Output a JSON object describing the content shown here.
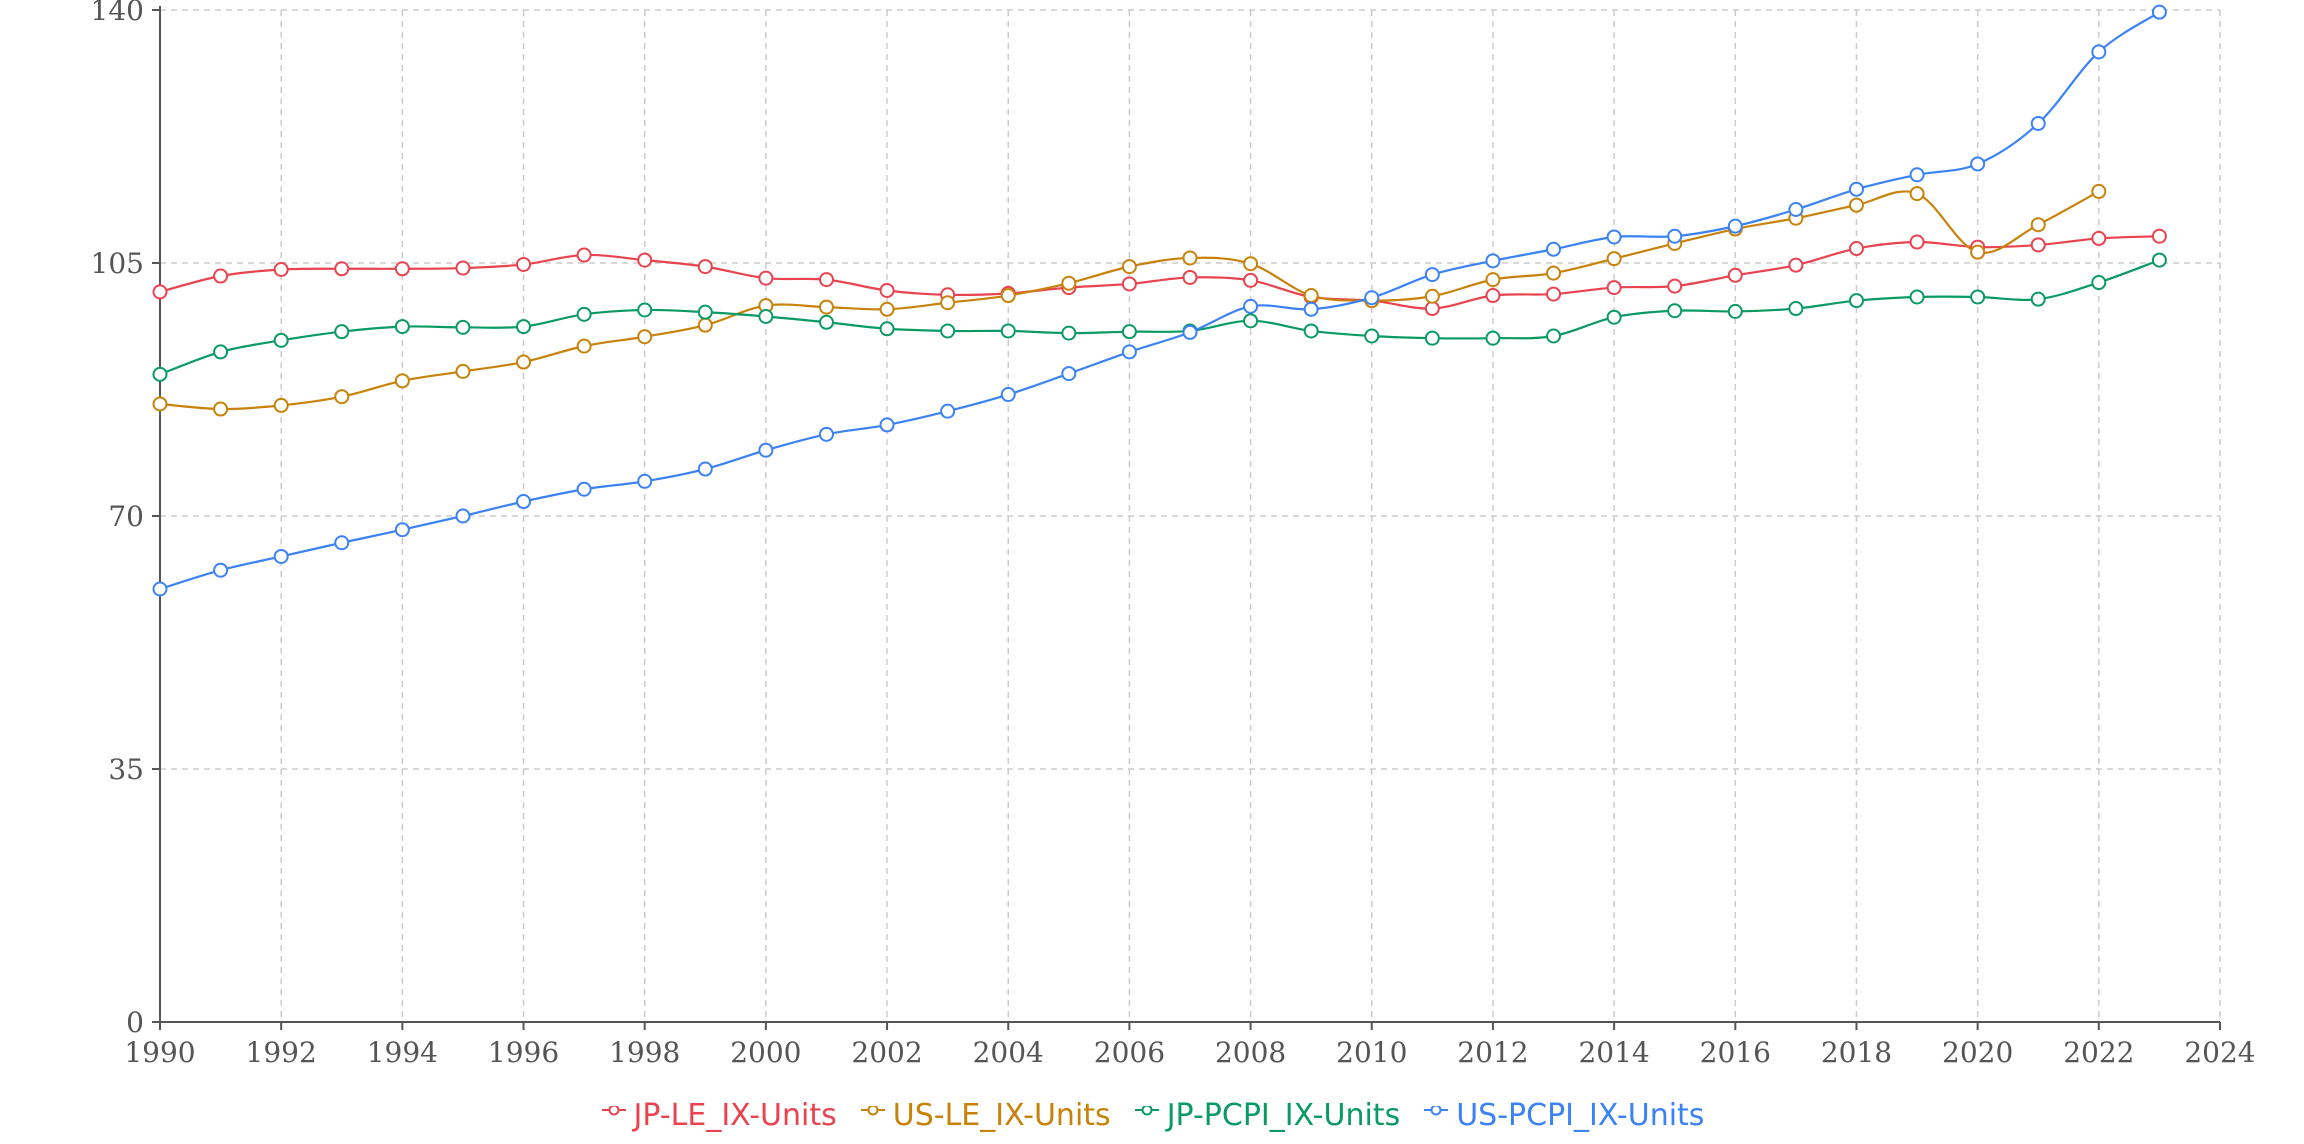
{
  "chart_data": {
    "type": "line",
    "title": "",
    "xlabel": "",
    "ylabel": "",
    "xlim": [
      1990,
      2024
    ],
    "ylim": [
      0,
      140
    ],
    "x_ticks": [
      1990,
      1992,
      1994,
      1996,
      1998,
      2000,
      2002,
      2004,
      2006,
      2008,
      2010,
      2012,
      2014,
      2016,
      2018,
      2020,
      2022,
      2024
    ],
    "y_ticks": [
      0,
      35,
      70,
      105,
      140
    ],
    "grid": true,
    "legend_position": "bottom-center",
    "series": [
      {
        "name": "JP-LE_IX-Units",
        "color": "#e8434f",
        "x": [
          1990,
          1991,
          1992,
          1993,
          1994,
          1995,
          1996,
          1997,
          1998,
          1999,
          2000,
          2001,
          2002,
          2003,
          2004,
          2005,
          2006,
          2007,
          2008,
          2009,
          2010,
          2011,
          2012,
          2013,
          2014,
          2015,
          2016,
          2017,
          2018,
          2019,
          2020,
          2021,
          2022,
          2023
        ],
        "values": [
          101.0,
          103.2,
          104.1,
          104.2,
          104.2,
          104.3,
          104.8,
          106.1,
          105.4,
          104.5,
          102.9,
          102.7,
          101.2,
          100.6,
          100.8,
          101.6,
          102.1,
          103.0,
          102.6,
          100.3,
          99.8,
          98.7,
          100.5,
          100.7,
          101.6,
          101.8,
          103.3,
          104.7,
          107.0,
          107.9,
          107.2,
          107.5,
          108.4,
          108.7
        ]
      },
      {
        "name": "US-LE_IX-Units",
        "color": "#c8820a",
        "x": [
          1990,
          1991,
          1992,
          1993,
          1994,
          1995,
          1996,
          1997,
          1998,
          1999,
          2000,
          2001,
          2002,
          2003,
          2004,
          2005,
          2006,
          2007,
          2008,
          2009,
          2010,
          2011,
          2012,
          2013,
          2014,
          2015,
          2016,
          2017,
          2018,
          2019,
          2020,
          2021,
          2022
        ],
        "values": [
          85.5,
          84.8,
          85.3,
          86.5,
          88.7,
          90.0,
          91.3,
          93.5,
          94.8,
          96.4,
          99.1,
          98.9,
          98.6,
          99.5,
          100.5,
          102.2,
          104.5,
          105.7,
          104.9,
          100.5,
          99.8,
          100.4,
          102.7,
          103.6,
          105.6,
          107.7,
          109.7,
          111.2,
          113.0,
          114.6,
          106.5,
          110.3,
          114.9
        ]
      },
      {
        "name": "JP-PCPI_IX-Units",
        "color": "#0a9a63",
        "x": [
          1990,
          1991,
          1992,
          1993,
          1994,
          1995,
          1996,
          1997,
          1998,
          1999,
          2000,
          2001,
          2002,
          2003,
          2004,
          2005,
          2006,
          2007,
          2008,
          2009,
          2010,
          2011,
          2012,
          2013,
          2014,
          2015,
          2016,
          2017,
          2018,
          2019,
          2020,
          2021,
          2022,
          2023
        ],
        "values": [
          89.6,
          92.7,
          94.3,
          95.5,
          96.2,
          96.1,
          96.2,
          97.9,
          98.5,
          98.2,
          97.6,
          96.8,
          95.9,
          95.6,
          95.6,
          95.3,
          95.5,
          95.6,
          97.0,
          95.6,
          94.9,
          94.6,
          94.6,
          94.9,
          97.5,
          98.4,
          98.3,
          98.7,
          99.8,
          100.3,
          100.3,
          100.0,
          102.3,
          105.4
        ]
      },
      {
        "name": "US-PCPI_IX-Units",
        "color": "#3b82f6",
        "x": [
          1990,
          1991,
          1992,
          1993,
          1994,
          1995,
          1996,
          1997,
          1998,
          1999,
          2000,
          2001,
          2002,
          2003,
          2004,
          2005,
          2006,
          2007,
          2008,
          2009,
          2010,
          2011,
          2012,
          2013,
          2014,
          2015,
          2016,
          2017,
          2018,
          2019,
          2020,
          2021,
          2022,
          2023
        ],
        "values": [
          59.9,
          62.5,
          64.4,
          66.3,
          68.1,
          70.0,
          72.0,
          73.7,
          74.8,
          76.5,
          79.1,
          81.3,
          82.6,
          84.5,
          86.8,
          89.7,
          92.7,
          95.4,
          99.0,
          98.6,
          100.2,
          103.4,
          105.3,
          106.9,
          108.6,
          108.7,
          110.1,
          112.4,
          115.2,
          117.2,
          118.7,
          124.3,
          134.2,
          139.7
        ]
      }
    ]
  }
}
